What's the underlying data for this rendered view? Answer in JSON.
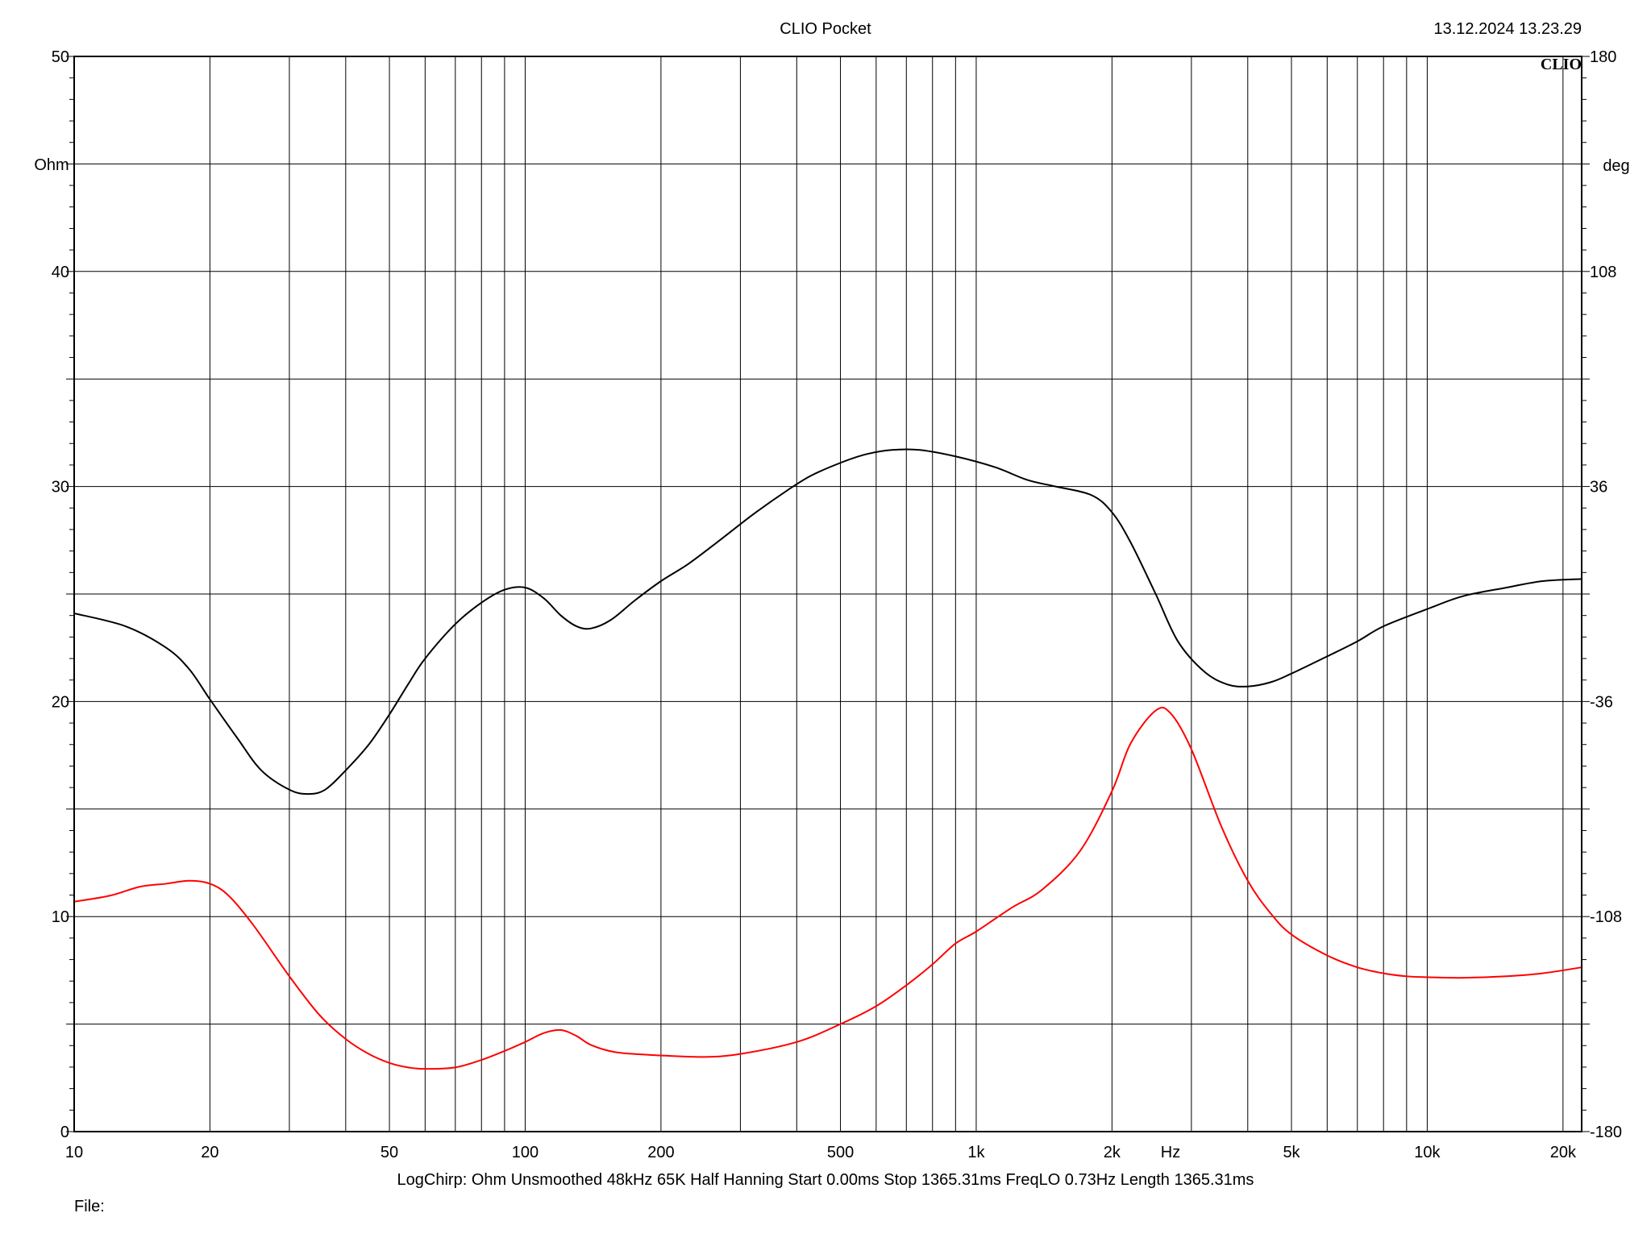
{
  "header": {
    "app_title": "CLIO Pocket",
    "timestamp": "13.12.2024 13.23.29",
    "logo_text": "CLIO"
  },
  "axes": {
    "left_unit": "Ohm",
    "right_unit": "deg",
    "x_unit": "Hz",
    "left_ticks": [
      "50",
      "40",
      "30",
      "20",
      "10",
      "0"
    ],
    "right_ticks": [
      "180",
      "108",
      "36",
      "-36",
      "-108",
      "-180"
    ],
    "x_ticks": [
      "10",
      "20",
      "50",
      "100",
      "200",
      "500",
      "1k",
      "2k",
      "5k",
      "10k",
      "20k"
    ]
  },
  "footer": {
    "settings": [
      "LogChirp:",
      "Ohm",
      "Unsmoothed",
      "48kHz",
      "65K",
      "Half Hanning",
      "Start 0.00ms",
      "Stop 1365.31ms",
      "FreqLO 0.73Hz",
      "Length 1365.31ms"
    ],
    "file_label": "File:"
  },
  "colors": {
    "impedance": "#000000",
    "phase": "#ff0000",
    "grid": "#000000"
  },
  "chart_data": {
    "type": "line",
    "title": "CLIO Pocket",
    "xscale": "log",
    "xlim": [
      10,
      22000
    ],
    "ylim_left": [
      0,
      50
    ],
    "ylim_right": [
      -180,
      180
    ],
    "grid": true,
    "series": [
      {
        "axis": "left",
        "color": "#000000",
        "points": [
          [
            10,
            24.1
          ],
          [
            13,
            23.5
          ],
          [
            16,
            22.5
          ],
          [
            18,
            21.5
          ],
          [
            20,
            20.1
          ],
          [
            23,
            18.3
          ],
          [
            26,
            16.8
          ],
          [
            30,
            15.9
          ],
          [
            33,
            15.7
          ],
          [
            36,
            15.9
          ],
          [
            40,
            16.8
          ],
          [
            45,
            18.0
          ],
          [
            50,
            19.4
          ],
          [
            55,
            20.8
          ],
          [
            60,
            22.0
          ],
          [
            70,
            23.6
          ],
          [
            80,
            24.6
          ],
          [
            90,
            25.2
          ],
          [
            100,
            25.3
          ],
          [
            110,
            24.8
          ],
          [
            120,
            24.0
          ],
          [
            130,
            23.5
          ],
          [
            140,
            23.4
          ],
          [
            155,
            23.8
          ],
          [
            175,
            24.7
          ],
          [
            200,
            25.6
          ],
          [
            230,
            26.4
          ],
          [
            270,
            27.5
          ],
          [
            320,
            28.7
          ],
          [
            380,
            29.8
          ],
          [
            430,
            30.5
          ],
          [
            500,
            31.1
          ],
          [
            570,
            31.5
          ],
          [
            650,
            31.7
          ],
          [
            750,
            31.7
          ],
          [
            900,
            31.4
          ],
          [
            1100,
            30.9
          ],
          [
            1300,
            30.3
          ],
          [
            1500,
            30.0
          ],
          [
            1800,
            29.6
          ],
          [
            2000,
            28.8
          ],
          [
            2200,
            27.4
          ],
          [
            2500,
            25.0
          ],
          [
            2800,
            22.8
          ],
          [
            3200,
            21.4
          ],
          [
            3600,
            20.8
          ],
          [
            4000,
            20.7
          ],
          [
            4500,
            20.9
          ],
          [
            5000,
            21.3
          ],
          [
            6000,
            22.1
          ],
          [
            7000,
            22.8
          ],
          [
            8000,
            23.5
          ],
          [
            10000,
            24.3
          ],
          [
            12000,
            24.9
          ],
          [
            15000,
            25.3
          ],
          [
            18000,
            25.6
          ],
          [
            22000,
            25.7
          ]
        ]
      },
      {
        "axis": "right",
        "color": "#ff0000",
        "points": [
          [
            10,
            -103
          ],
          [
            12,
            -101
          ],
          [
            14,
            -98
          ],
          [
            16,
            -97
          ],
          [
            18,
            -96
          ],
          [
            20,
            -97
          ],
          [
            22,
            -101
          ],
          [
            25,
            -111
          ],
          [
            30,
            -128
          ],
          [
            35,
            -141
          ],
          [
            40,
            -149
          ],
          [
            45,
            -154
          ],
          [
            50,
            -157
          ],
          [
            55,
            -158.5
          ],
          [
            60,
            -159
          ],
          [
            70,
            -158.5
          ],
          [
            80,
            -156
          ],
          [
            90,
            -153
          ],
          [
            100,
            -150
          ],
          [
            110,
            -147
          ],
          [
            120,
            -146
          ],
          [
            130,
            -148
          ],
          [
            140,
            -151
          ],
          [
            160,
            -153.5
          ],
          [
            200,
            -154.5
          ],
          [
            250,
            -155
          ],
          [
            300,
            -154
          ],
          [
            400,
            -150
          ],
          [
            500,
            -144
          ],
          [
            600,
            -138
          ],
          [
            700,
            -131
          ],
          [
            800,
            -124
          ],
          [
            900,
            -117
          ],
          [
            1000,
            -113
          ],
          [
            1200,
            -105
          ],
          [
            1400,
            -99
          ],
          [
            1700,
            -86
          ],
          [
            2000,
            -66
          ],
          [
            2200,
            -50
          ],
          [
            2500,
            -39
          ],
          [
            2700,
            -40
          ],
          [
            3000,
            -52
          ],
          [
            3500,
            -78
          ],
          [
            4000,
            -96
          ],
          [
            4500,
            -107
          ],
          [
            5000,
            -114
          ],
          [
            6000,
            -121
          ],
          [
            7000,
            -125
          ],
          [
            8000,
            -127
          ],
          [
            9000,
            -128
          ],
          [
            10000,
            -128.3
          ],
          [
            12000,
            -128.5
          ],
          [
            15000,
            -128
          ],
          [
            18000,
            -127
          ],
          [
            22000,
            -125
          ]
        ]
      }
    ]
  }
}
